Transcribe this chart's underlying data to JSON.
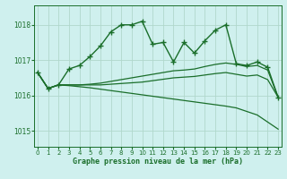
{
  "xlabel": "Graphe pression niveau de la mer (hPa)",
  "bg_color": "#cff0ee",
  "grid_color": "#b0d8cc",
  "line_color": "#1a6e2a",
  "x_ticks": [
    0,
    1,
    2,
    3,
    4,
    5,
    6,
    7,
    8,
    9,
    10,
    11,
    12,
    13,
    14,
    15,
    16,
    17,
    18,
    19,
    20,
    21,
    22,
    23
  ],
  "y_ticks": [
    1015,
    1016,
    1017,
    1018
  ],
  "ylim": [
    1014.55,
    1018.55
  ],
  "xlim": [
    -0.3,
    23.3
  ],
  "series": [
    {
      "y": [
        1016.65,
        1016.2,
        1016.3,
        1016.75,
        1016.85,
        1017.1,
        1017.4,
        1017.8,
        1018.0,
        1018.0,
        1018.1,
        1017.45,
        1017.5,
        1016.95,
        1017.5,
        1017.2,
        1017.55,
        1017.85,
        1018.0,
        1016.9,
        1016.85,
        1016.95,
        1016.8,
        1015.95
      ],
      "marker": "+",
      "lw": 1.0,
      "ms": 4.5,
      "mew": 1.0
    },
    {
      "y": [
        1016.65,
        1016.2,
        1016.3,
        1016.3,
        1016.3,
        1016.32,
        1016.35,
        1016.4,
        1016.45,
        1016.5,
        1016.55,
        1016.6,
        1016.65,
        1016.7,
        1016.72,
        1016.75,
        1016.82,
        1016.88,
        1016.92,
        1016.88,
        1016.82,
        1016.85,
        1016.72,
        1015.95
      ],
      "marker": null,
      "lw": 0.9,
      "ms": null,
      "mew": null
    },
    {
      "y": [
        1016.65,
        1016.2,
        1016.3,
        1016.3,
        1016.3,
        1016.3,
        1016.3,
        1016.32,
        1016.34,
        1016.36,
        1016.38,
        1016.42,
        1016.46,
        1016.5,
        1016.52,
        1016.54,
        1016.58,
        1016.62,
        1016.65,
        1016.6,
        1016.55,
        1016.58,
        1016.45,
        1015.95
      ],
      "marker": null,
      "lw": 0.9,
      "ms": null,
      "mew": null
    },
    {
      "y": [
        1016.65,
        1016.2,
        1016.3,
        1016.28,
        1016.25,
        1016.22,
        1016.18,
        1016.14,
        1016.1,
        1016.06,
        1016.02,
        1015.98,
        1015.94,
        1015.9,
        1015.86,
        1015.82,
        1015.78,
        1015.74,
        1015.7,
        1015.65,
        1015.55,
        1015.45,
        1015.25,
        1015.05
      ],
      "marker": null,
      "lw": 0.9,
      "ms": null,
      "mew": null
    }
  ]
}
